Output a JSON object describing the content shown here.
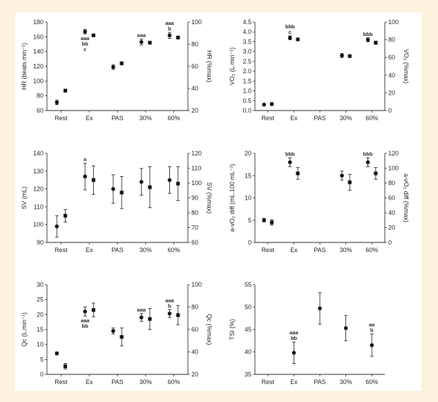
{
  "chart_data": [
    {
      "type": "scatter",
      "categories": [
        "Rest",
        "Ex",
        "PAS",
        "30%",
        "60%"
      ],
      "ylabel": "HR (beats.min⁻¹)",
      "ylabel2": "HR (%max)",
      "ylim": [
        60,
        180
      ],
      "yticks": [
        60,
        80,
        100,
        120,
        140,
        160,
        180
      ],
      "ylim2": [
        20,
        100
      ],
      "yticks2": [
        20,
        40,
        60,
        80,
        100
      ],
      "points": [
        {
          "x": 0.85,
          "y": 71,
          "err": 3,
          "marker": "circle"
        },
        {
          "x": 1.15,
          "y": 87,
          "err": 2,
          "marker": "square"
        },
        {
          "x": 1.85,
          "y": 167,
          "err": 3,
          "marker": "circle"
        },
        {
          "x": 2.15,
          "y": 162,
          "err": 1,
          "marker": "square"
        },
        {
          "x": 2.85,
          "y": 119,
          "err": 3,
          "marker": "circle"
        },
        {
          "x": 3.15,
          "y": 124,
          "err": 2,
          "marker": "square"
        },
        {
          "x": 3.85,
          "y": 153,
          "err": 4,
          "marker": "circle"
        },
        {
          "x": 4.15,
          "y": 152,
          "err": 2,
          "marker": "square"
        },
        {
          "x": 4.85,
          "y": 162,
          "err": 4,
          "marker": "circle"
        },
        {
          "x": 5.15,
          "y": 159,
          "err": 2,
          "marker": "square"
        }
      ],
      "annotations": [
        {
          "x": 1.85,
          "y": 167,
          "pos": "below",
          "lines": [
            "aaa",
            "bb",
            "c"
          ]
        },
        {
          "x": 3.85,
          "y": 153,
          "pos": "above",
          "lines": [
            "aaa"
          ]
        },
        {
          "x": 4.85,
          "y": 162,
          "pos": "above",
          "lines": [
            "aaa",
            "b"
          ]
        }
      ]
    },
    {
      "type": "scatter",
      "categories": [
        "Rest",
        "Ex",
        "PAS",
        "30%",
        "60%"
      ],
      "ylabel": "VO₂ (L.min⁻¹)",
      "ylabel2": "VO₂ (%max)",
      "ylim": [
        0,
        4.5
      ],
      "yticks": [
        0.0,
        0.5,
        1.0,
        1.5,
        2.0,
        2.5,
        3.0,
        3.5,
        4.0,
        4.5
      ],
      "ylim2": [
        0,
        100
      ],
      "yticks2": [
        0,
        20,
        40,
        60,
        80,
        100
      ],
      "points": [
        {
          "x": 0.85,
          "y": 0.3,
          "err": 0.03,
          "marker": "circle"
        },
        {
          "x": 1.15,
          "y": 0.33,
          "err": 0.03,
          "marker": "square"
        },
        {
          "x": 1.85,
          "y": 3.7,
          "err": 0.1,
          "marker": "circle"
        },
        {
          "x": 2.15,
          "y": 3.62,
          "err": 0.05,
          "marker": "square"
        },
        {
          "x": 3.85,
          "y": 2.8,
          "err": 0.1,
          "marker": "circle"
        },
        {
          "x": 4.15,
          "y": 2.77,
          "err": 0.06,
          "marker": "square"
        },
        {
          "x": 4.85,
          "y": 3.6,
          "err": 0.1,
          "marker": "circle"
        },
        {
          "x": 5.15,
          "y": 3.45,
          "err": 0.08,
          "marker": "square"
        }
      ],
      "annotations": [
        {
          "x": 1.85,
          "y": 3.7,
          "pos": "above",
          "lines": [
            "bbb",
            "c"
          ]
        },
        {
          "x": 4.85,
          "y": 3.6,
          "pos": "above",
          "lines": [
            "bbb"
          ]
        }
      ]
    },
    {
      "type": "scatter",
      "categories": [
        "Rest",
        "Ex",
        "PAS",
        "30%",
        "60%"
      ],
      "ylabel": "SV (mL)",
      "ylabel2": "SV (%max)",
      "ylim": [
        90,
        140
      ],
      "yticks": [
        90,
        100,
        110,
        120,
        130,
        140
      ],
      "ylim2": [
        60,
        120
      ],
      "yticks2": [
        60,
        70,
        80,
        90,
        100,
        110,
        120
      ],
      "points": [
        {
          "x": 0.85,
          "y": 99,
          "err": 6,
          "marker": "circle"
        },
        {
          "x": 1.15,
          "y": 105,
          "err": 3.5,
          "marker": "square"
        },
        {
          "x": 1.85,
          "y": 127,
          "err": 7.5,
          "marker": "circle"
        },
        {
          "x": 2.15,
          "y": 125,
          "err": 8,
          "marker": "square"
        },
        {
          "x": 2.85,
          "y": 120,
          "err": 8,
          "marker": "circle"
        },
        {
          "x": 3.15,
          "y": 118,
          "err": 9,
          "marker": "square"
        },
        {
          "x": 3.85,
          "y": 124,
          "err": 7.5,
          "marker": "circle"
        },
        {
          "x": 4.15,
          "y": 121,
          "err": 11.5,
          "marker": "square"
        },
        {
          "x": 4.85,
          "y": 125,
          "err": 7.5,
          "marker": "circle"
        },
        {
          "x": 5.15,
          "y": 123,
          "err": 9.5,
          "marker": "square"
        }
      ],
      "annotations": [
        {
          "x": 1.85,
          "y": 127,
          "pos": "abovebar",
          "top": 134.5,
          "lines": [
            "a"
          ]
        }
      ]
    },
    {
      "type": "scatter",
      "categories": [
        "Rest",
        "Ex",
        "PAS",
        "30%",
        "60%"
      ],
      "ylabel": "a-vO₂ diff (mL.100 mL⁻¹)",
      "ylabel2": "a-vO₂ diff (%max)",
      "ylim": [
        0,
        20
      ],
      "yticks": [
        0,
        5,
        10,
        15,
        20
      ],
      "ylim2": [
        0,
        120
      ],
      "yticks2": [
        0,
        20,
        40,
        60,
        80,
        100,
        120
      ],
      "points": [
        {
          "x": 0.85,
          "y": 5.0,
          "err": 0.4,
          "marker": "circle"
        },
        {
          "x": 1.15,
          "y": 4.5,
          "err": 0.6,
          "marker": "square"
        },
        {
          "x": 1.85,
          "y": 18.0,
          "err": 1.0,
          "marker": "circle"
        },
        {
          "x": 2.15,
          "y": 15.5,
          "err": 1.3,
          "marker": "square"
        },
        {
          "x": 3.85,
          "y": 15.0,
          "err": 1.0,
          "marker": "circle"
        },
        {
          "x": 4.15,
          "y": 13.5,
          "err": 1.8,
          "marker": "square"
        },
        {
          "x": 4.85,
          "y": 18.0,
          "err": 1.0,
          "marker": "circle"
        },
        {
          "x": 5.15,
          "y": 15.5,
          "err": 1.3,
          "marker": "square"
        }
      ],
      "annotations": [
        {
          "x": 1.85,
          "y": 18.0,
          "pos": "above",
          "lines": [
            "bbb"
          ]
        },
        {
          "x": 4.85,
          "y": 18.0,
          "pos": "above",
          "lines": [
            "bbb"
          ]
        }
      ]
    },
    {
      "type": "scatter",
      "categories": [
        "Rest",
        "Ex",
        "PAS",
        "30%",
        "60%"
      ],
      "ylabel": "Qc (L.min⁻¹)",
      "ylabel2": "Qc (%max)",
      "ylim": [
        0,
        30
      ],
      "yticks": [
        0,
        5,
        10,
        15,
        20,
        25,
        30
      ],
      "ylim2": [
        20,
        100
      ],
      "yticks2": [
        20,
        40,
        60,
        80,
        100
      ],
      "points": [
        {
          "x": 0.85,
          "y": 7.0,
          "err": 0.5,
          "marker": "circle"
        },
        {
          "x": 1.15,
          "y": 2.7,
          "err": 0.9,
          "marker": "square"
        },
        {
          "x": 1.85,
          "y": 21.0,
          "err": 1.5,
          "marker": "circle"
        },
        {
          "x": 2.15,
          "y": 21.5,
          "err": 2.3,
          "marker": "square"
        },
        {
          "x": 2.85,
          "y": 14.5,
          "err": 1.0,
          "marker": "circle"
        },
        {
          "x": 3.15,
          "y": 12.5,
          "err": 3.0,
          "marker": "square"
        },
        {
          "x": 3.85,
          "y": 19.0,
          "err": 1.3,
          "marker": "circle"
        },
        {
          "x": 4.15,
          "y": 18.5,
          "err": 3.5,
          "marker": "square"
        },
        {
          "x": 4.85,
          "y": 20.3,
          "err": 1.3,
          "marker": "circle"
        },
        {
          "x": 5.15,
          "y": 19.8,
          "err": 3.2,
          "marker": "square"
        }
      ],
      "annotations": [
        {
          "x": 1.85,
          "y": 21.0,
          "pos": "below",
          "lines": [
            "aaa",
            "bb"
          ]
        },
        {
          "x": 3.85,
          "y": 19.0,
          "pos": "above",
          "lines": [
            "aaa"
          ]
        },
        {
          "x": 4.85,
          "y": 20.3,
          "pos": "above",
          "lines": [
            "aaa",
            "b"
          ]
        }
      ]
    },
    {
      "type": "scatter",
      "categories": [
        "Rest",
        "Ex",
        "PAS",
        "30%",
        "60%"
      ],
      "ylabel": "TSI (%)",
      "ylim": [
        35,
        55
      ],
      "yticks": [
        35,
        40,
        45,
        50,
        55
      ],
      "points": [
        {
          "x": 2,
          "y": 39.8,
          "err": 2.4,
          "marker": "circle"
        },
        {
          "x": 3,
          "y": 49.7,
          "err": 3.5,
          "marker": "circle"
        },
        {
          "x": 4,
          "y": 45.3,
          "err": 2.8,
          "marker": "circle"
        },
        {
          "x": 5,
          "y": 41.5,
          "err": 2.5,
          "marker": "circle"
        }
      ],
      "annotations": [
        {
          "x": 2,
          "y": 39.8,
          "pos": "abovebar",
          "top": 42.2,
          "lines": [
            "aaa",
            "bb"
          ]
        },
        {
          "x": 5,
          "y": 41.5,
          "pos": "abovebar",
          "top": 44.0,
          "lines": [
            "aa",
            "b"
          ]
        }
      ]
    }
  ]
}
